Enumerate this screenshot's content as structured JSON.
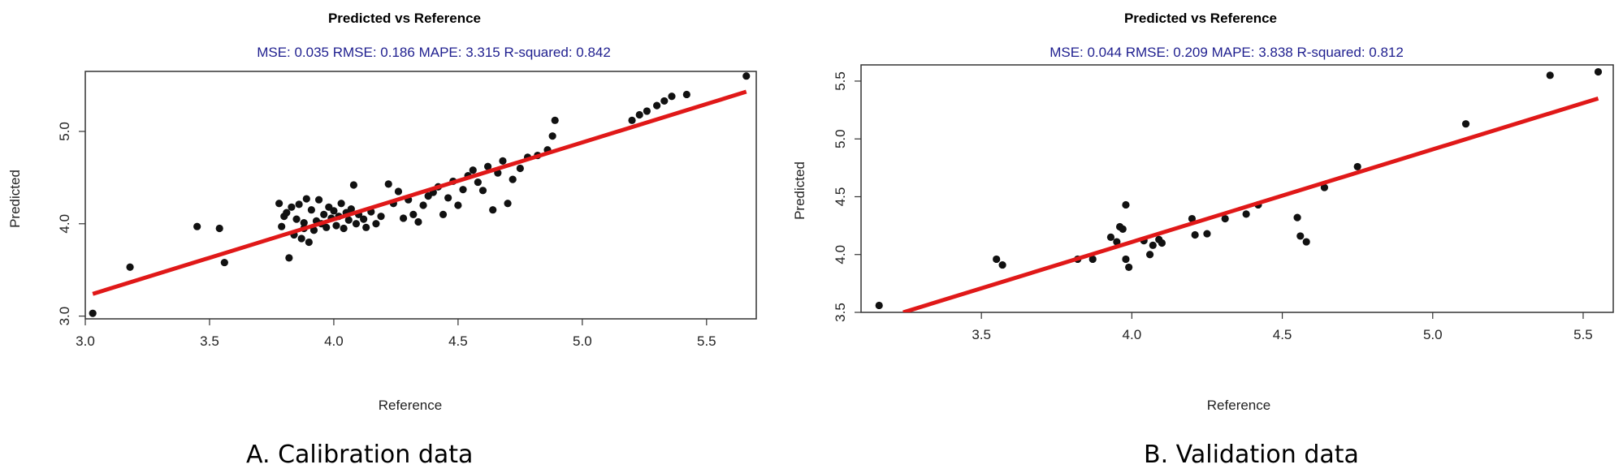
{
  "chart_data": [
    {
      "type": "scatter",
      "panel": "A",
      "title": "Predicted vs Reference",
      "subtitle": "MSE: 0.035   RMSE: 0.186   MAPE: 3.315   R-squared: 0.842",
      "xlabel": "Reference",
      "ylabel": "Predicted",
      "caption": "A.   Calibration data",
      "xlim": [
        3.0,
        5.7
      ],
      "ylim": [
        2.97,
        5.65
      ],
      "xticks": [
        "3.0",
        "3.5",
        "4.0",
        "4.5",
        "5.0",
        "5.5"
      ],
      "yticks": [
        "3.0",
        "4.0",
        "5.0"
      ],
      "point_color": "#111111",
      "line_color": "#e01818",
      "fit_line": {
        "x": [
          3.03,
          5.66
        ],
        "y": [
          3.24,
          5.43
        ]
      },
      "x": [
        3.03,
        3.18,
        3.45,
        3.54,
        3.56,
        3.78,
        3.79,
        3.8,
        3.81,
        3.82,
        3.83,
        3.84,
        3.85,
        3.86,
        3.87,
        3.88,
        3.88,
        3.89,
        3.9,
        3.91,
        3.92,
        3.93,
        3.94,
        3.95,
        3.96,
        3.97,
        3.98,
        3.99,
        4.0,
        4.01,
        4.02,
        4.03,
        4.04,
        4.05,
        4.06,
        4.07,
        4.08,
        4.09,
        4.1,
        4.12,
        4.13,
        4.15,
        4.17,
        4.19,
        4.22,
        4.24,
        4.26,
        4.28,
        4.3,
        4.32,
        4.34,
        4.36,
        4.38,
        4.4,
        4.42,
        4.44,
        4.46,
        4.48,
        4.5,
        4.52,
        4.54,
        4.56,
        4.58,
        4.6,
        4.62,
        4.64,
        4.66,
        4.68,
        4.7,
        4.72,
        4.75,
        4.78,
        4.82,
        4.86,
        4.88,
        4.89,
        5.2,
        5.23,
        5.26,
        5.3,
        5.33,
        5.36,
        5.42,
        5.66
      ],
      "y": [
        3.03,
        3.53,
        3.97,
        3.95,
        3.58,
        4.22,
        3.97,
        4.08,
        4.12,
        3.63,
        4.18,
        3.88,
        4.05,
        4.21,
        3.84,
        3.95,
        4.01,
        4.27,
        3.8,
        4.15,
        3.93,
        4.03,
        4.26,
        4.0,
        4.1,
        3.96,
        4.18,
        4.06,
        4.14,
        3.98,
        4.08,
        4.22,
        3.95,
        4.12,
        4.04,
        4.16,
        4.42,
        4.0,
        4.1,
        4.05,
        3.96,
        4.13,
        4.0,
        4.08,
        4.43,
        4.22,
        4.35,
        4.06,
        4.26,
        4.1,
        4.02,
        4.2,
        4.3,
        4.34,
        4.4,
        4.1,
        4.28,
        4.46,
        4.2,
        4.37,
        4.52,
        4.58,
        4.45,
        4.36,
        4.62,
        4.15,
        4.55,
        4.68,
        4.22,
        4.48,
        4.6,
        4.72,
        4.74,
        4.8,
        4.95,
        5.12,
        5.12,
        5.18,
        5.22,
        5.28,
        5.33,
        5.38,
        5.4,
        5.6
      ]
    },
    {
      "type": "scatter",
      "panel": "B",
      "title": "Predicted vs Reference",
      "subtitle": "MSE: 0.044   RMSE: 0.209   MAPE: 3.838   R-squared: 0.812",
      "xlabel": "Reference",
      "ylabel": "Predicted",
      "caption": "B.   Validation data",
      "xlim": [
        3.1,
        5.6
      ],
      "ylim": [
        3.5,
        5.64
      ],
      "xticks": [
        "3.5",
        "4.0",
        "4.5",
        "5.0",
        "5.5"
      ],
      "yticks": [
        "3.5",
        "4.0",
        "4.5",
        "5.0",
        "5.5"
      ],
      "point_color": "#111111",
      "line_color": "#e01818",
      "fit_line": {
        "x": [
          3.24,
          5.55
        ],
        "y": [
          3.5,
          5.35
        ]
      },
      "x": [
        3.16,
        3.55,
        3.57,
        3.82,
        3.87,
        3.93,
        3.95,
        3.96,
        3.97,
        3.98,
        3.98,
        3.99,
        4.04,
        4.06,
        4.07,
        4.09,
        4.1,
        4.2,
        4.21,
        4.25,
        4.31,
        4.38,
        4.42,
        4.55,
        4.56,
        4.58,
        4.64,
        4.75,
        5.11,
        5.39,
        5.55
      ],
      "y": [
        3.56,
        3.96,
        3.91,
        3.96,
        3.96,
        4.15,
        4.11,
        4.24,
        4.22,
        3.96,
        4.43,
        3.89,
        4.12,
        4.0,
        4.08,
        4.13,
        4.1,
        4.31,
        4.17,
        4.18,
        4.31,
        4.35,
        4.43,
        4.32,
        4.16,
        4.11,
        4.58,
        4.76,
        5.13,
        5.55,
        5.58
      ]
    }
  ]
}
